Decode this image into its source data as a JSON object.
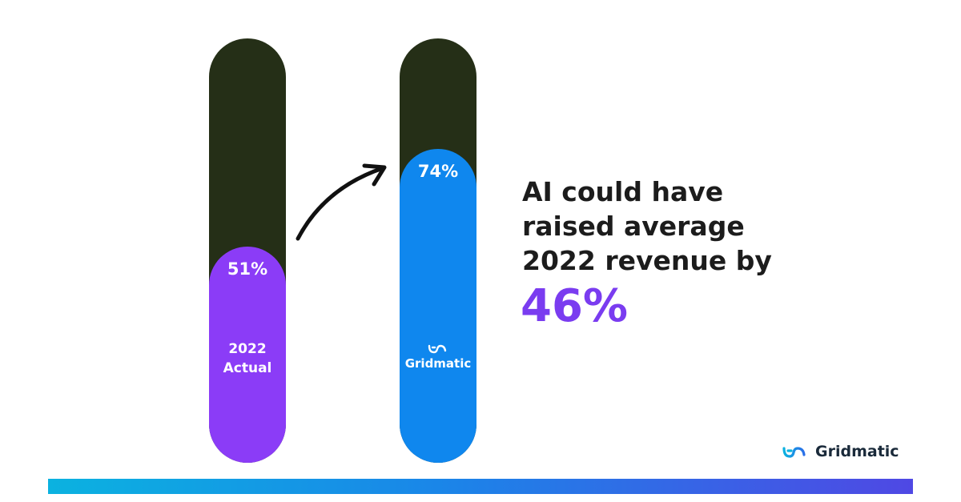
{
  "chart_data": {
    "type": "bar",
    "categories": [
      "2022 Actual",
      "Gridmatic"
    ],
    "values": [
      51,
      74
    ],
    "ylim": [
      0,
      100
    ],
    "value_labels": [
      "51%",
      "74%"
    ],
    "bar_label_lines": [
      "2022",
      "Actual"
    ],
    "bar_logo_text": "Gridmatic",
    "colors": {
      "track": "#252f17",
      "fills": [
        "#8b3cf7",
        "#0f87ee"
      ]
    },
    "headline_lines": [
      "AI could have",
      "raised average",
      "2022 revenue by"
    ],
    "highlight_value": "46%",
    "highlight_color": "#7a3cf0"
  },
  "brand": {
    "name": "Gridmatic",
    "logo_icon": "gridmatic-logo-icon"
  },
  "footer": {
    "strip_colors": [
      "#0bb2e0",
      "#1a86e8",
      "#4f48e4"
    ]
  }
}
